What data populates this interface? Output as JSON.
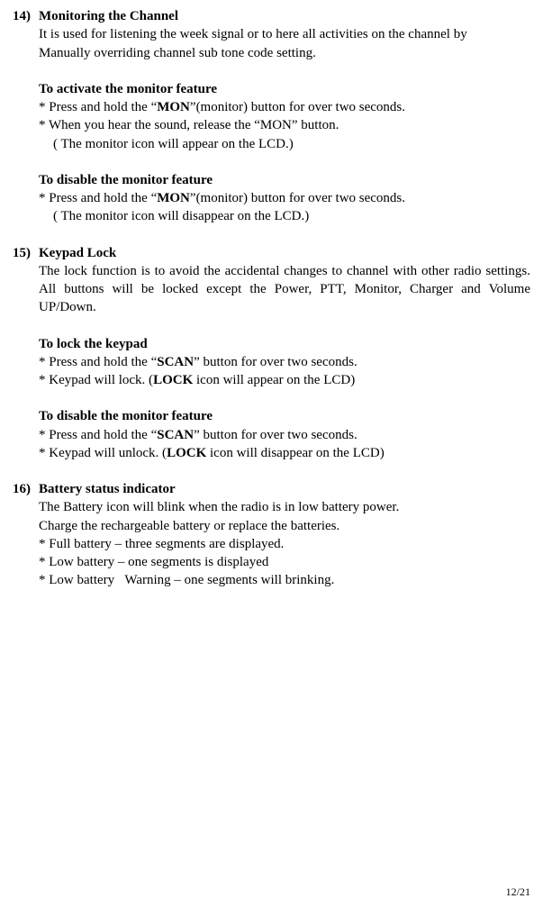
{
  "page_number": "12/21",
  "s14": {
    "num": "14)",
    "title": "Monitoring the Channel",
    "intro1": "It is used for listening the week signal or to here all activities on the channel by",
    "intro2": "Manually overriding channel sub tone code setting.",
    "activate_head": "To activate the monitor feature",
    "act_l1a": "* Press and hold the “",
    "act_l1b": "MON",
    "act_l1c": "”(monitor) button for over two seconds.",
    "act_l2": "* When you hear the sound, release the “MON” button.",
    "act_l3": "( The monitor icon will appear on the LCD.)",
    "disable_head": "To disable the monitor feature",
    "dis_l1a": "* Press and hold the “",
    "dis_l1b": "MON",
    "dis_l1c": "”(monitor) button for over two seconds.",
    "dis_l2": "( The monitor icon will disappear on the LCD.)"
  },
  "s15": {
    "num": "15)",
    "title": "Keypad Lock",
    "intro": "The lock function is to avoid the accidental changes to channel with other radio settings. All buttons will be locked except the Power, PTT, Monitor, Charger and Volume UP/Down.",
    "lock_head": "To lock the keypad",
    "lk_l1a": "* Press and hold the “",
    "lk_l1b": "SCAN",
    "lk_l1c": "” button for over two seconds.",
    "lk_l2a": "* Keypad will lock. (",
    "lk_l2b": "LOCK",
    "lk_l2c": " icon will appear on the LCD)",
    "dis_head": "To disable the monitor feature",
    "ds_l1a": "* Press and hold the “",
    "ds_l1b": "SCAN",
    "ds_l1c": "” button for over two seconds.",
    "ds_l2a": "* Keypad will unlock. (",
    "ds_l2b": "LOCK",
    "ds_l2c": " icon will disappear on the LCD)"
  },
  "s16": {
    "num": "16)",
    "title": "Battery status indicator",
    "l1": "The Battery icon will blink when the radio is in low battery power.",
    "l2": "Charge the rechargeable battery or replace the batteries.",
    "l3": "* Full battery – three segments are displayed.",
    "l4": "* Low battery – one segments is displayed",
    "l5": "* Low battery   Warning – one segments will brinking."
  }
}
